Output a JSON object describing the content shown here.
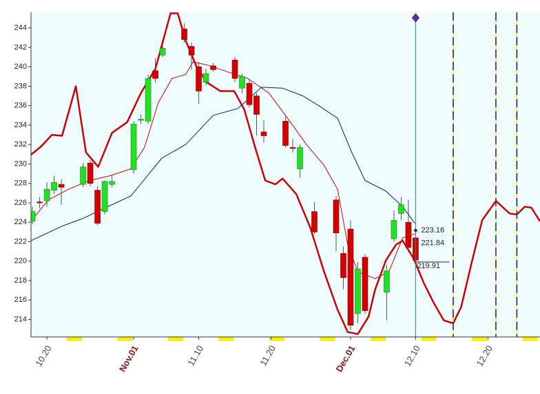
{
  "chart_data": {
    "type": "candlestick",
    "xlim": [
      -2.2,
      68.2
    ],
    "ylim": [
      212.2,
      245.6
    ],
    "yticks": [
      214,
      216,
      218,
      220,
      222,
      224,
      226,
      228,
      230,
      232,
      234,
      236,
      238,
      240,
      242,
      244
    ],
    "xticks": [
      {
        "value": 0,
        "label": "10.20"
      },
      {
        "value": 12,
        "label": "Nov.01"
      },
      {
        "value": 21,
        "label": "11.10"
      },
      {
        "value": 31,
        "label": "11.20"
      },
      {
        "value": 42,
        "label": "Dec.01"
      },
      {
        "value": 51,
        "label": "12.10"
      },
      {
        "value": 61,
        "label": "12.20"
      }
    ],
    "up_color": "#22e022",
    "down_color": "#d40000",
    "x": [
      -2,
      -1,
      0,
      1,
      2,
      5,
      6,
      7,
      8,
      9,
      12,
      13,
      14,
      15,
      16,
      19,
      20,
      21,
      22,
      23,
      26,
      27,
      28,
      29,
      30,
      33,
      34,
      35,
      37,
      40,
      41,
      42,
      43,
      44,
      47,
      48,
      49,
      50,
      51
    ],
    "open": [
      224.1,
      226.1,
      226.2,
      227.3,
      227.9,
      227.9,
      230.1,
      227.3,
      225.1,
      227.9,
      229.4,
      234.5,
      234.4,
      239.6,
      241.2,
      243.9,
      242.1,
      240.0,
      238.4,
      240.1,
      240.7,
      237.8,
      238.3,
      237.0,
      233.3,
      234.4,
      231.7,
      229.5,
      225.1,
      226.3,
      220.8,
      223.3,
      214.6,
      220.4,
      216.8,
      222.3,
      224.9,
      224.0,
      222.4
    ],
    "high": [
      225.6,
      226.6,
      228.1,
      228.8,
      228.4,
      230.1,
      230.4,
      227.7,
      228.3,
      228.8,
      234.4,
      235.1,
      239.2,
      240.9,
      242.2,
      244.5,
      242.5,
      240.5,
      239.8,
      240.4,
      241.0,
      239.3,
      238.7,
      237.3,
      234.5,
      234.9,
      232.6,
      232.0,
      226.1,
      226.7,
      221.5,
      224.2,
      219.9,
      220.7,
      219.6,
      225.2,
      226.6,
      226.3,
      223.0
    ],
    "low": [
      223.8,
      225.4,
      225.6,
      226.9,
      225.8,
      227.6,
      227.7,
      223.7,
      224.8,
      227.6,
      229.0,
      234.1,
      234.1,
      238.4,
      241.0,
      242.5,
      239.7,
      236.2,
      238.1,
      239.5,
      238.4,
      237.3,
      235.8,
      232.9,
      232.2,
      231.7,
      231.2,
      228.6,
      222.8,
      221.0,
      217.1,
      212.9,
      213.6,
      214.6,
      213.9,
      222.0,
      224.2,
      220.9,
      219.9
    ],
    "close": [
      225.1,
      226.0,
      227.4,
      228.1,
      227.6,
      229.7,
      228.0,
      223.9,
      228.2,
      228.2,
      234.1,
      234.6,
      238.8,
      238.8,
      241.9,
      242.8,
      241.2,
      237.5,
      239.3,
      239.7,
      238.8,
      239.0,
      236.1,
      235.1,
      232.9,
      231.9,
      231.6,
      231.7,
      223.0,
      222.9,
      218.3,
      213.4,
      219.2,
      214.9,
      219.0,
      224.2,
      225.8,
      221.4,
      220.1
    ],
    "lines": [
      {
        "color": "#cc0000",
        "width": 2.5,
        "x": [
          -2.2,
          -0.8,
          0.7,
          2.1,
          4.0,
          5.4,
          7.1,
          9.0,
          11.1,
          13.0,
          15.0,
          17.1,
          18.1,
          19.2,
          20.7,
          22.1,
          24.0,
          25.9,
          27.3,
          28.8,
          30.2,
          31.6,
          32.6,
          34.5,
          36.4,
          38.3,
          40.2,
          41.6,
          43.0,
          44.5,
          45.4,
          46.9,
          48.3,
          49.2,
          50.7,
          52.1,
          53.5,
          54.9,
          56.2,
          57.3,
          58.8,
          60.2,
          62.1,
          64.0,
          65.0,
          66.1,
          67.0,
          68.2
        ],
        "values": [
          230.95,
          231.8,
          233.0,
          232.9,
          238.0,
          231.2,
          229.7,
          233.2,
          234.3,
          237.3,
          239.8,
          245.5,
          245.5,
          242.7,
          240.0,
          238.4,
          237.5,
          237.5,
          235.6,
          231.7,
          228.3,
          227.9,
          228.5,
          226.9,
          223.5,
          219.0,
          215.0,
          212.7,
          212.5,
          214.3,
          217.1,
          220.1,
          221.7,
          222.1,
          220.3,
          217.8,
          215.7,
          213.9,
          213.6,
          215.3,
          220.0,
          224.2,
          226.2,
          224.9,
          224.8,
          225.6,
          225.5,
          224.1
        ]
      },
      {
        "color": "#cc0000",
        "width": 1,
        "x": [
          -2.2,
          0.2,
          3.0,
          5.9,
          8.8,
          11.6,
          13.5,
          15.4,
          17.3,
          19.2,
          20.2,
          22.1,
          24.9,
          27.8,
          30.7,
          33.5,
          35.9,
          38.3,
          40.2,
          41.6,
          43.0,
          45.4,
          47.3,
          49.2,
          50.9
        ],
        "values": [
          224.1,
          226.3,
          227.4,
          228.3,
          228.8,
          229.5,
          231.7,
          236.3,
          238.8,
          239.2,
          240.5,
          240.2,
          239.5,
          238.8,
          237.3,
          234.5,
          232.0,
          229.9,
          227.4,
          221.7,
          218.9,
          218.2,
          218.9,
          222.4,
          222.8
        ]
      },
      {
        "color": "#1a1a5a",
        "width": 1,
        "x": [
          -2.2,
          2.1,
          5.0,
          7.8,
          11.6,
          15.9,
          19.2,
          23.0,
          26.4,
          29.7,
          32.6,
          35.4,
          37.8,
          40.2,
          42.1,
          44.0,
          46.9,
          49.2,
          50.9
        ],
        "values": [
          222.1,
          223.6,
          224.4,
          225.4,
          226.7,
          230.6,
          232.0,
          235.0,
          235.7,
          237.9,
          237.8,
          237.0,
          235.9,
          234.7,
          231.3,
          228.3,
          227.2,
          225.6,
          223.9
        ]
      }
    ],
    "cursor_x": 51,
    "cycle_lines_x": [
      56.2,
      62.1,
      65.0
    ],
    "price_labels": [
      223.16,
      221.84,
      219.91
    ]
  }
}
